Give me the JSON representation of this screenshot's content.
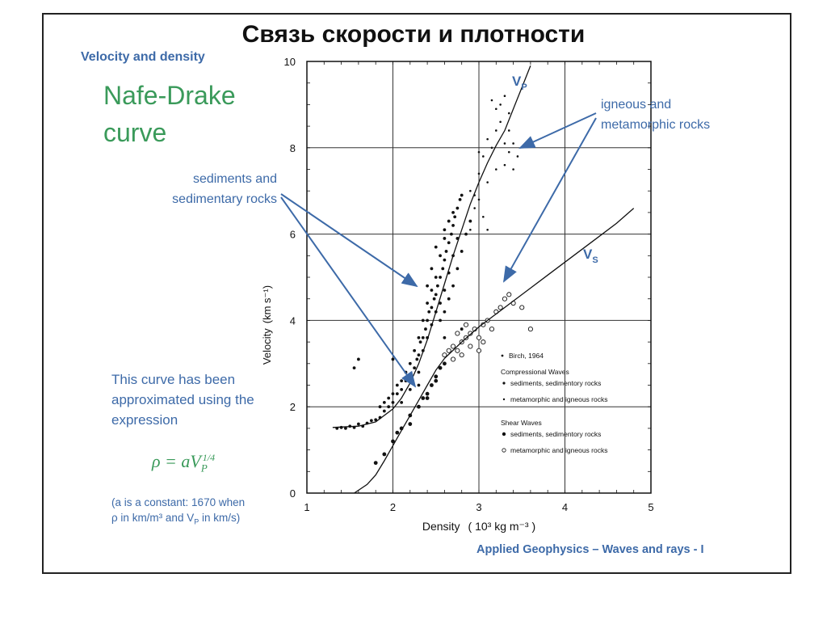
{
  "slide": {
    "title": "Связь скорости и плотности",
    "subtitle": "Velocity and density",
    "heading_line1": "Nafe-Drake",
    "heading_line2": "curve",
    "note": "This curve has been approximated using the expression",
    "formula_main": "ρ = aV",
    "formula_sub": "P",
    "formula_sup": "1/4",
    "constant_note_1": "(a is a constant: 1670 when",
    "constant_note_2": "ρ in km/m³ and V",
    "constant_note_2_sub": "P",
    "constant_note_2_end": " in km/s)",
    "credit": "Applied Geophysics – Waves and rays - I"
  },
  "chart_data": {
    "type": "scatter",
    "xlabel": "Density",
    "xunit": "( 10³ kg m⁻³ )",
    "ylabel": "Velocity",
    "yunit": "(km s⁻¹)",
    "xlim": [
      1,
      5
    ],
    "ylim": [
      0,
      10
    ],
    "xticks": [
      "1",
      "2",
      "3",
      "4",
      "5"
    ],
    "yticks": [
      "0",
      "2",
      "4",
      "6",
      "8",
      "10"
    ],
    "grid": true,
    "curves": [
      {
        "name": "VP",
        "label_main": "V",
        "label_sub": "P",
        "x": [
          1.3,
          1.6,
          1.8,
          2.0,
          2.1,
          2.2,
          2.3,
          2.4,
          2.5,
          2.6,
          2.7,
          2.8,
          2.9,
          3.0,
          3.1,
          3.2,
          3.3,
          3.4,
          3.5,
          3.6
        ],
        "y": [
          1.52,
          1.55,
          1.65,
          1.95,
          2.2,
          2.55,
          3.0,
          3.55,
          4.2,
          4.85,
          5.5,
          6.1,
          6.7,
          7.2,
          7.65,
          8.05,
          8.4,
          8.9,
          9.4,
          9.9
        ]
      },
      {
        "name": "VS",
        "label_main": "V",
        "label_sub": "S",
        "x": [
          1.55,
          1.7,
          1.8,
          1.9,
          2.0,
          2.1,
          2.2,
          2.3,
          2.4,
          2.5,
          2.6,
          2.8,
          3.0,
          3.2,
          3.4,
          3.6,
          3.8,
          4.0,
          4.2,
          4.4,
          4.6,
          4.8
        ],
        "y": [
          0.0,
          0.2,
          0.42,
          0.75,
          1.1,
          1.45,
          1.8,
          2.15,
          2.5,
          2.85,
          3.12,
          3.5,
          3.85,
          4.15,
          4.45,
          4.75,
          5.05,
          5.35,
          5.65,
          5.95,
          6.25,
          6.6
        ]
      }
    ],
    "scatter_groups": [
      {
        "name": "compressional-sediments",
        "marker": "dot",
        "points": [
          [
            1.35,
            1.5
          ],
          [
            1.4,
            1.52
          ],
          [
            1.45,
            1.5
          ],
          [
            1.5,
            1.55
          ],
          [
            1.55,
            1.52
          ],
          [
            1.6,
            1.6
          ],
          [
            1.65,
            1.55
          ],
          [
            1.7,
            1.62
          ],
          [
            1.75,
            1.68
          ],
          [
            1.8,
            1.7
          ],
          [
            1.85,
            1.75
          ],
          [
            1.9,
            1.9
          ],
          [
            1.95,
            2.0
          ],
          [
            2.0,
            2.1
          ],
          [
            2.05,
            2.3
          ],
          [
            2.1,
            2.4
          ],
          [
            2.15,
            2.6
          ],
          [
            2.2,
            2.7
          ],
          [
            2.25,
            2.9
          ],
          [
            2.28,
            3.1
          ],
          [
            2.3,
            3.2
          ],
          [
            2.32,
            3.5
          ],
          [
            2.35,
            3.6
          ],
          [
            2.38,
            3.8
          ],
          [
            2.4,
            4.0
          ],
          [
            2.42,
            4.2
          ],
          [
            2.45,
            4.3
          ],
          [
            2.48,
            4.5
          ],
          [
            2.5,
            4.6
          ],
          [
            2.52,
            4.8
          ],
          [
            2.55,
            5.0
          ],
          [
            2.58,
            5.2
          ],
          [
            2.6,
            5.4
          ],
          [
            2.62,
            5.6
          ],
          [
            2.65,
            5.8
          ],
          [
            2.68,
            6.0
          ],
          [
            2.7,
            6.2
          ],
          [
            2.72,
            6.4
          ],
          [
            2.75,
            6.6
          ],
          [
            2.78,
            6.8
          ],
          [
            2.8,
            6.9
          ],
          [
            2.4,
            3.6
          ],
          [
            2.45,
            3.9
          ],
          [
            2.5,
            4.2
          ],
          [
            2.55,
            4.4
          ],
          [
            2.6,
            4.7
          ],
          [
            2.65,
            5.1
          ],
          [
            2.7,
            5.5
          ],
          [
            2.75,
            5.9
          ],
          [
            2.35,
            3.3
          ],
          [
            2.3,
            2.8
          ],
          [
            2.2,
            2.4
          ],
          [
            2.1,
            2.1
          ],
          [
            2.55,
            5.5
          ],
          [
            2.6,
            5.9
          ],
          [
            2.65,
            6.3
          ],
          [
            2.5,
            5.0
          ],
          [
            2.45,
            4.7
          ],
          [
            2.4,
            4.4
          ],
          [
            2.35,
            4.0
          ],
          [
            2.3,
            3.6
          ],
          [
            2.25,
            3.3
          ],
          [
            2.2,
            3.0
          ],
          [
            2.15,
            2.8
          ],
          [
            2.1,
            2.6
          ],
          [
            2.05,
            2.5
          ],
          [
            2.0,
            2.3
          ],
          [
            1.95,
            2.2
          ],
          [
            1.9,
            2.1
          ],
          [
            1.85,
            2.0
          ],
          [
            2.55,
            4.0
          ],
          [
            2.6,
            4.2
          ],
          [
            2.65,
            4.5
          ],
          [
            2.7,
            4.8
          ],
          [
            2.75,
            5.2
          ],
          [
            2.8,
            5.6
          ],
          [
            2.85,
            6.0
          ],
          [
            2.9,
            6.3
          ],
          [
            2.7,
            6.5
          ],
          [
            2.6,
            6.1
          ],
          [
            2.5,
            5.7
          ],
          [
            2.45,
            5.2
          ],
          [
            2.4,
            4.8
          ],
          [
            1.55,
            2.9
          ],
          [
            1.6,
            3.1
          ],
          [
            2.0,
            3.1
          ],
          [
            2.3,
            2.5
          ],
          [
            2.6,
            3.6
          ],
          [
            2.8,
            3.8
          ]
        ]
      },
      {
        "name": "compressional-igneous",
        "marker": "small-dot",
        "points": [
          [
            2.9,
            7.0
          ],
          [
            3.0,
            7.4
          ],
          [
            3.05,
            7.8
          ],
          [
            3.1,
            8.2
          ],
          [
            3.15,
            8.0
          ],
          [
            3.2,
            8.4
          ],
          [
            3.25,
            8.6
          ],
          [
            3.3,
            8.1
          ],
          [
            3.35,
            7.9
          ],
          [
            3.3,
            7.6
          ],
          [
            3.2,
            7.5
          ],
          [
            3.1,
            7.2
          ],
          [
            3.0,
            6.8
          ],
          [
            3.25,
            9.0
          ],
          [
            3.3,
            9.2
          ],
          [
            3.35,
            8.8
          ],
          [
            3.2,
            8.9
          ],
          [
            3.15,
            9.1
          ],
          [
            3.4,
            7.5
          ],
          [
            3.45,
            7.8
          ],
          [
            2.95,
            6.6
          ],
          [
            3.05,
            6.4
          ],
          [
            3.1,
            6.1
          ],
          [
            2.9,
            6.1
          ],
          [
            2.95,
            6.9
          ],
          [
            3.0,
            7.9
          ],
          [
            3.35,
            8.4
          ],
          [
            3.4,
            8.1
          ]
        ]
      },
      {
        "name": "shear-sediments",
        "marker": "big-dot",
        "points": [
          [
            1.8,
            0.7
          ],
          [
            1.9,
            0.9
          ],
          [
            2.0,
            1.2
          ],
          [
            2.05,
            1.4
          ],
          [
            2.1,
            1.5
          ],
          [
            2.2,
            1.8
          ],
          [
            2.3,
            2.0
          ],
          [
            2.35,
            2.2
          ],
          [
            2.4,
            2.3
          ],
          [
            2.45,
            2.5
          ],
          [
            2.5,
            2.7
          ],
          [
            2.55,
            2.9
          ],
          [
            2.6,
            3.0
          ],
          [
            2.2,
            1.6
          ],
          [
            2.4,
            2.2
          ],
          [
            2.5,
            2.6
          ]
        ]
      },
      {
        "name": "shear-igneous",
        "marker": "circle",
        "points": [
          [
            2.6,
            3.2
          ],
          [
            2.65,
            3.3
          ],
          [
            2.7,
            3.4
          ],
          [
            2.75,
            3.3
          ],
          [
            2.8,
            3.5
          ],
          [
            2.85,
            3.6
          ],
          [
            2.9,
            3.7
          ],
          [
            2.95,
            3.8
          ],
          [
            3.0,
            3.6
          ],
          [
            3.05,
            3.9
          ],
          [
            3.1,
            4.0
          ],
          [
            3.2,
            4.2
          ],
          [
            3.25,
            4.3
          ],
          [
            3.3,
            4.5
          ],
          [
            3.35,
            4.6
          ],
          [
            3.4,
            4.4
          ],
          [
            2.7,
            3.1
          ],
          [
            2.8,
            3.2
          ],
          [
            2.9,
            3.4
          ],
          [
            3.0,
            3.3
          ],
          [
            3.05,
            3.5
          ],
          [
            3.5,
            4.3
          ],
          [
            3.6,
            3.8
          ],
          [
            2.75,
            3.7
          ],
          [
            2.85,
            3.9
          ],
          [
            3.15,
            3.8
          ]
        ]
      }
    ],
    "legend": {
      "position": "bottom-right",
      "source": "Birch, 1964",
      "comp_title": "Compressional Waves",
      "comp_sed": "sediments, sedimentory rocks",
      "comp_ign": "metamorphic and igneous rocks",
      "shear_title": "Shear Waves",
      "shear_sed": "sediments, sedimentory rocks",
      "shear_ign": "metamorphic and igneous rocks"
    },
    "annotations": {
      "sediments_line1": "sediments and",
      "sediments_line2": "sedimentary rocks",
      "igneous_line1": "igneous and",
      "igneous_line2": "metamorphic rocks"
    },
    "colors": {
      "annotation": "#3d6aa8",
      "heading": "#3a9a5a",
      "ink": "#111111"
    }
  }
}
